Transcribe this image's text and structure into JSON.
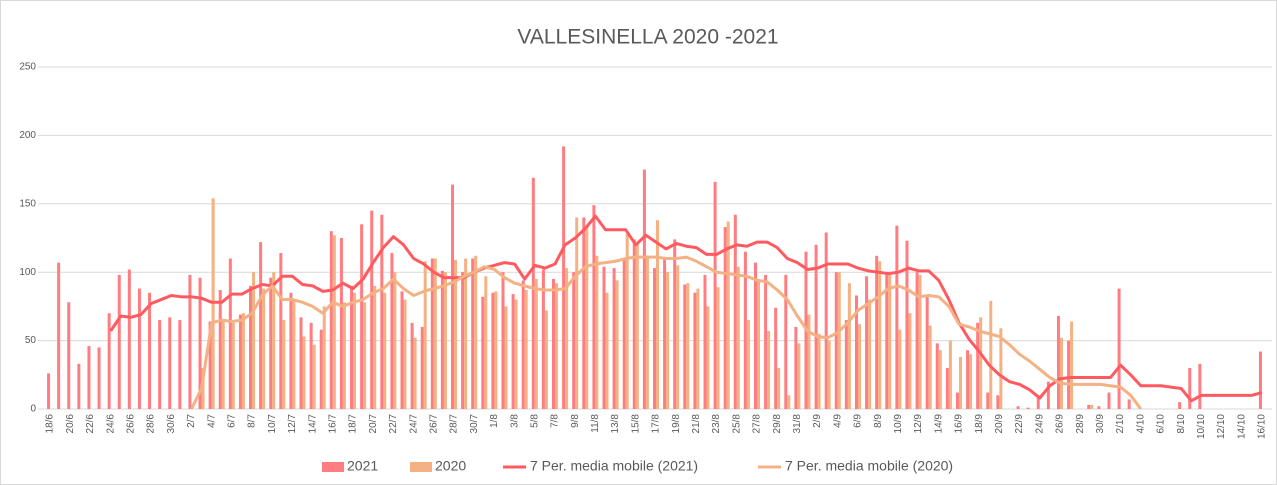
{
  "chart_data": {
    "type": "bar",
    "title": "VALLESINELLA 2020 -2021",
    "categories": [
      "18/6",
      null,
      "20/6",
      null,
      "22/6",
      null,
      "24/6",
      null,
      "26/6",
      null,
      "28/6",
      null,
      "30/6",
      null,
      "2/7",
      null,
      "4/7",
      null,
      "6/7",
      null,
      "8/7",
      null,
      "10/7",
      null,
      "12/7",
      null,
      "14/7",
      null,
      "16/7",
      null,
      "18/7",
      null,
      "20/7",
      null,
      "22/7",
      null,
      "24/7",
      null,
      "26/7",
      null,
      "28/7",
      null,
      "30/7",
      null,
      "1/8",
      null,
      "3/8",
      null,
      "5/8",
      null,
      "7/8",
      null,
      "9/8",
      null,
      "11/8",
      null,
      "13/8",
      null,
      "15/8",
      null,
      "17/8",
      null,
      "19/8",
      null,
      "21/8",
      null,
      "23/8",
      null,
      "25/8",
      null,
      "27/8",
      null,
      "29/8",
      null,
      "31/8",
      null,
      "2/9",
      null,
      "4/9",
      null,
      "6/9",
      null,
      "8/9",
      null,
      "10/9",
      null,
      "12/9",
      null,
      "14/9",
      null,
      "16/9",
      null,
      "18/9",
      null,
      "20/9",
      null,
      "22/9",
      null,
      "24/9",
      null,
      "26/9",
      null,
      "28/9",
      null,
      "30/9",
      null,
      "2/10",
      null,
      "4/10",
      null,
      "6/10",
      null,
      "8/10",
      null,
      "10/10",
      null,
      "12/10",
      null,
      "14/10",
      null,
      "16/10"
    ],
    "series": [
      {
        "name": "2021",
        "type": "bar",
        "color": "#ff7c80",
        "values": [
          26,
          107,
          78,
          33,
          46,
          45,
          70,
          98,
          102,
          88,
          85,
          65,
          67,
          65,
          98,
          96,
          64,
          87,
          110,
          69,
          90,
          122,
          96,
          114,
          85,
          67,
          63,
          58,
          130,
          125,
          90,
          135,
          145,
          142,
          114,
          86,
          63,
          60,
          110,
          101,
          164,
          100,
          110,
          82,
          85,
          100,
          84,
          94,
          169,
          102,
          95,
          192,
          100,
          140,
          149,
          104,
          103,
          110,
          124,
          175,
          103,
          110,
          124,
          91,
          85,
          98,
          166,
          133,
          142,
          115,
          107,
          98,
          74,
          98,
          60,
          115,
          120,
          129,
          100,
          65,
          83,
          97,
          112,
          100,
          134,
          123,
          100,
          82,
          48,
          30,
          12,
          43,
          63,
          12,
          10,
          0,
          2,
          1,
          10,
          20,
          68,
          50,
          0,
          3,
          2,
          12,
          88,
          7,
          0,
          0,
          0,
          0,
          5,
          30,
          33,
          0,
          0,
          0,
          0,
          0,
          42
        ]
      },
      {
        "name": "2020",
        "type": "bar",
        "color": "#f4b183",
        "values": [
          null,
          null,
          null,
          null,
          null,
          null,
          null,
          null,
          null,
          null,
          null,
          null,
          null,
          null,
          null,
          30,
          154,
          65,
          63,
          70,
          100,
          88,
          100,
          65,
          80,
          53,
          47,
          75,
          127,
          78,
          85,
          78,
          90,
          85,
          100,
          80,
          52,
          108,
          110,
          100,
          109,
          110,
          112,
          97,
          86,
          75,
          80,
          87,
          95,
          72,
          92,
          103,
          140,
          134,
          112,
          85,
          94,
          128,
          121,
          112,
          138,
          100,
          105,
          92,
          88,
          75,
          89,
          137,
          104,
          65,
          95,
          57,
          30,
          10,
          48,
          69,
          55,
          50,
          100,
          92,
          62,
          80,
          108,
          99,
          58,
          70,
          98,
          61,
          43,
          50,
          38,
          40,
          67,
          79,
          59,
          0,
          0,
          0,
          0,
          0,
          52,
          64,
          0,
          3,
          0,
          null,
          null,
          null,
          null,
          null,
          null,
          null,
          null,
          null,
          null,
          null,
          null,
          null,
          null,
          null,
          null
        ]
      },
      {
        "name": "7 Per. media mobile (2021)",
        "type": "line",
        "color": "#ff5a5f",
        "values": [
          null,
          null,
          null,
          null,
          null,
          null,
          57,
          68,
          67,
          69,
          77,
          80,
          83,
          82,
          82,
          81,
          78,
          78,
          84,
          84,
          88,
          91,
          90,
          97,
          97,
          91,
          90,
          86,
          87,
          92,
          88,
          95,
          107,
          118,
          126,
          120,
          110,
          106,
          100,
          96,
          96,
          96,
          100,
          103,
          105,
          107,
          106,
          95,
          105,
          103,
          106,
          120,
          125,
          132,
          141,
          131,
          131,
          131,
          120,
          127,
          122,
          117,
          121,
          119,
          118,
          113,
          113,
          117,
          120,
          119,
          122,
          122,
          118,
          110,
          107,
          102,
          103,
          106,
          106,
          106,
          103,
          101,
          100,
          99,
          100,
          103,
          101,
          101,
          94,
          80,
          63,
          51,
          42,
          32,
          25,
          20,
          18,
          14,
          8,
          17,
          22,
          23,
          23,
          23,
          23,
          23,
          32,
          25,
          17,
          17,
          17,
          16,
          15,
          6,
          10,
          10,
          10,
          10,
          10,
          10,
          12
        ]
      },
      {
        "name": "7 Per. media mobile (2020)",
        "type": "line",
        "color": "#f4b183",
        "values": [
          null,
          null,
          null,
          null,
          null,
          null,
          null,
          null,
          null,
          null,
          null,
          null,
          null,
          null,
          0,
          15,
          63,
          65,
          64,
          65,
          70,
          83,
          90,
          80,
          80,
          78,
          75,
          70,
          78,
          75,
          78,
          80,
          85,
          88,
          95,
          88,
          83,
          86,
          88,
          90,
          93,
          97,
          100,
          104,
          102,
          96,
          92,
          90,
          88,
          87,
          87,
          88,
          97,
          104,
          106,
          107,
          108,
          110,
          111,
          111,
          111,
          110,
          110,
          111,
          108,
          104,
          100,
          99,
          98,
          97,
          94,
          93,
          87,
          80,
          68,
          57,
          53,
          52,
          56,
          63,
          72,
          77,
          82,
          88,
          90,
          87,
          82,
          83,
          82,
          75,
          62,
          60,
          57,
          55,
          53,
          47,
          40,
          35,
          29,
          23,
          19,
          18,
          18,
          18,
          18,
          17,
          16,
          10,
          0,
          null,
          null,
          null,
          null,
          null,
          null,
          null,
          null,
          null,
          null,
          null,
          null
        ]
      }
    ],
    "ylim": [
      0,
      250
    ],
    "yticks": [
      0,
      50,
      100,
      150,
      200,
      250
    ],
    "grid": true
  }
}
